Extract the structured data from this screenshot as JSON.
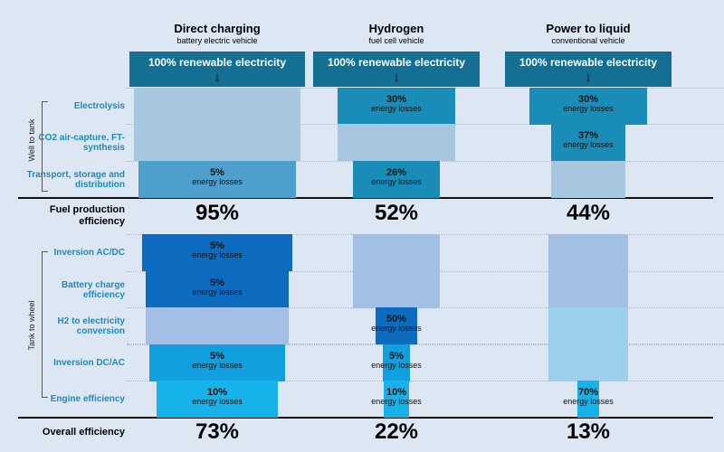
{
  "chart_data": {
    "type": "bar",
    "columns": [
      {
        "title": "Direct charging",
        "subtitle": "battery electric vehicle",
        "source": "100% renewable electricity",
        "fuel_production_efficiency": "95%",
        "overall_efficiency": "73%"
      },
      {
        "title": "Hydrogen",
        "subtitle": "fuel cell vehicle",
        "source": "100% renewable electricity",
        "fuel_production_efficiency": "52%",
        "overall_efficiency": "22%"
      },
      {
        "title": "Power to liquid",
        "subtitle": "conventional vehicle",
        "source": "100% renewable electricity",
        "fuel_production_efficiency": "44%",
        "overall_efficiency": "13%"
      }
    ],
    "groups": [
      "Well to tank",
      "Tank to wheel"
    ],
    "stages": [
      {
        "label": "Electrolysis",
        "group": "Well to tank",
        "losses": [
          null,
          "30%",
          "30%"
        ],
        "levels": [
          1.0,
          1.0,
          1.0
        ]
      },
      {
        "label": "CO2 air-capture, FT-synthesis",
        "group": "Well to tank",
        "losses": [
          null,
          null,
          "37%"
        ],
        "levels": [
          1.0,
          0.7,
          0.7
        ]
      },
      {
        "label": "Transport, storage and distribution",
        "group": "Well to tank",
        "losses": [
          "5%",
          "26%",
          null
        ],
        "levels": [
          1.0,
          0.7,
          0.44
        ]
      },
      {
        "label": "Inversion AC/DC",
        "group": "Tank to wheel",
        "losses": [
          "5%",
          null,
          null
        ],
        "levels": [
          0.95,
          0.52,
          0.44
        ]
      },
      {
        "label": "Battery charge efficiency",
        "group": "Tank to wheel",
        "losses": [
          "5%",
          null,
          null
        ],
        "levels": [
          0.9,
          0.52,
          0.44
        ]
      },
      {
        "label": "H2 to electricity conversion",
        "group": "Tank to wheel",
        "losses": [
          null,
          "50%",
          null
        ],
        "levels": [
          0.86,
          0.52,
          0.44
        ]
      },
      {
        "label": "Inversion DC/AC",
        "group": "Tank to wheel",
        "losses": [
          "5%",
          "5%",
          null
        ],
        "levels": [
          0.86,
          0.26,
          0.44
        ]
      },
      {
        "label": "Engine efficiency",
        "group": "Tank to wheel",
        "losses": [
          "10%",
          "10%",
          "70%"
        ],
        "levels": [
          0.81,
          0.25,
          0.44
        ]
      }
    ],
    "loss_unit": "energy losses",
    "fuel_production_label": "Fuel production efficiency",
    "overall_label": "Overall efficiency",
    "colors": {
      "source": "#156f93",
      "wtt_loss": "#1a8cb8",
      "wtt_transport_bev": "#4f9fcc",
      "wtt_pale": "#a7c7e0",
      "ttw_bev_dark": "#0d6cc0",
      "ttw_pale": "#a3bfe5",
      "ttw_light": "#9cd0ee",
      "ttw_mid": "#11a0df",
      "ttw_engine": "#18b2ea"
    }
  }
}
